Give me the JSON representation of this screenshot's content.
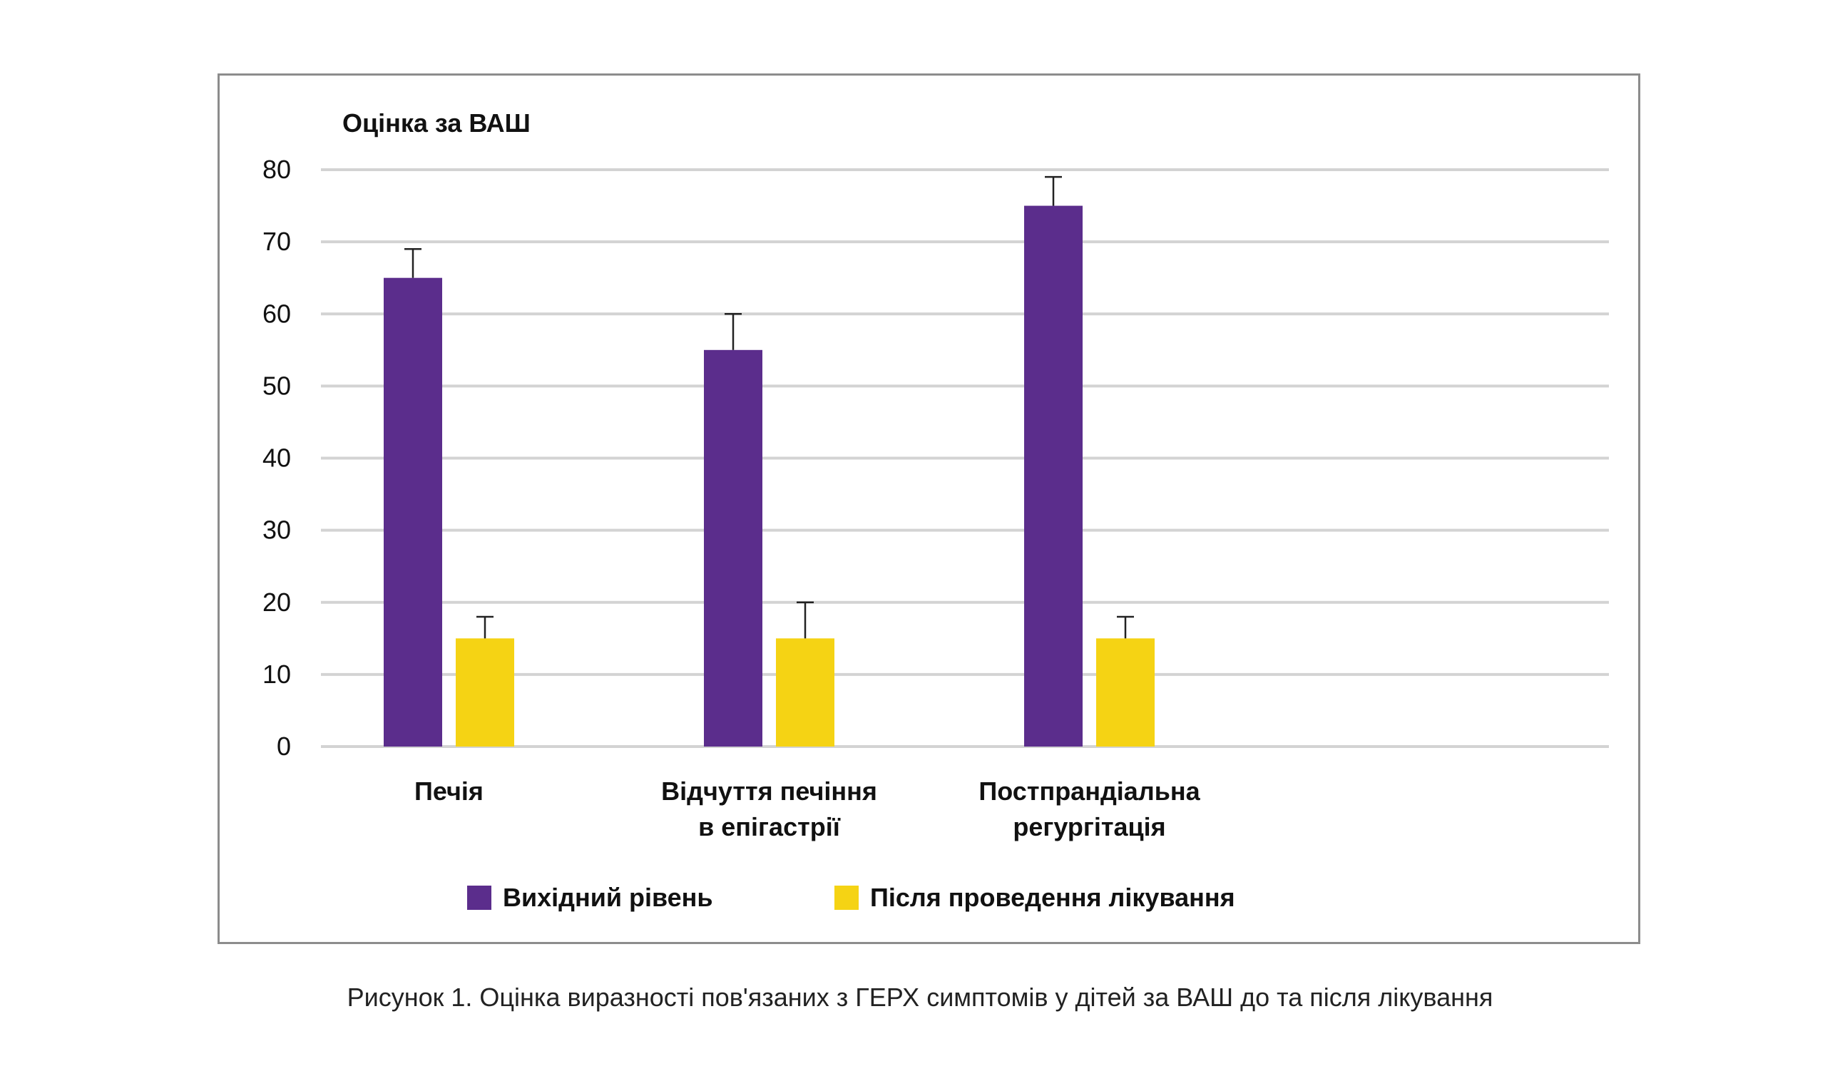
{
  "chart_data": {
    "type": "bar",
    "title": "",
    "ylabel": "Оцінка за ВАШ",
    "xlabel": "",
    "ylim": [
      0,
      80
    ],
    "yticks": [
      0,
      10,
      20,
      30,
      40,
      50,
      60,
      70,
      80
    ],
    "grid": true,
    "legend_position": "bottom",
    "categories": [
      [
        "Печія"
      ],
      [
        "Відчуття печіння",
        "в епігастрії"
      ],
      [
        "Постпрандіальна",
        "регургітація"
      ]
    ],
    "series": [
      {
        "name": "Вихідний рівень",
        "color": "#5b2d8c",
        "values": [
          65,
          55,
          75
        ],
        "error_upper": [
          4,
          5,
          4
        ]
      },
      {
        "name": "Після проведення лікування",
        "color": "#f5d314",
        "values": [
          15,
          15,
          15
        ],
        "error_upper": [
          3,
          5,
          3
        ]
      }
    ]
  },
  "caption": "Рисунок 1. Оцінка виразності пов'язаних з ГЕРХ симптомів у дітей за ВАШ до та після лікування"
}
